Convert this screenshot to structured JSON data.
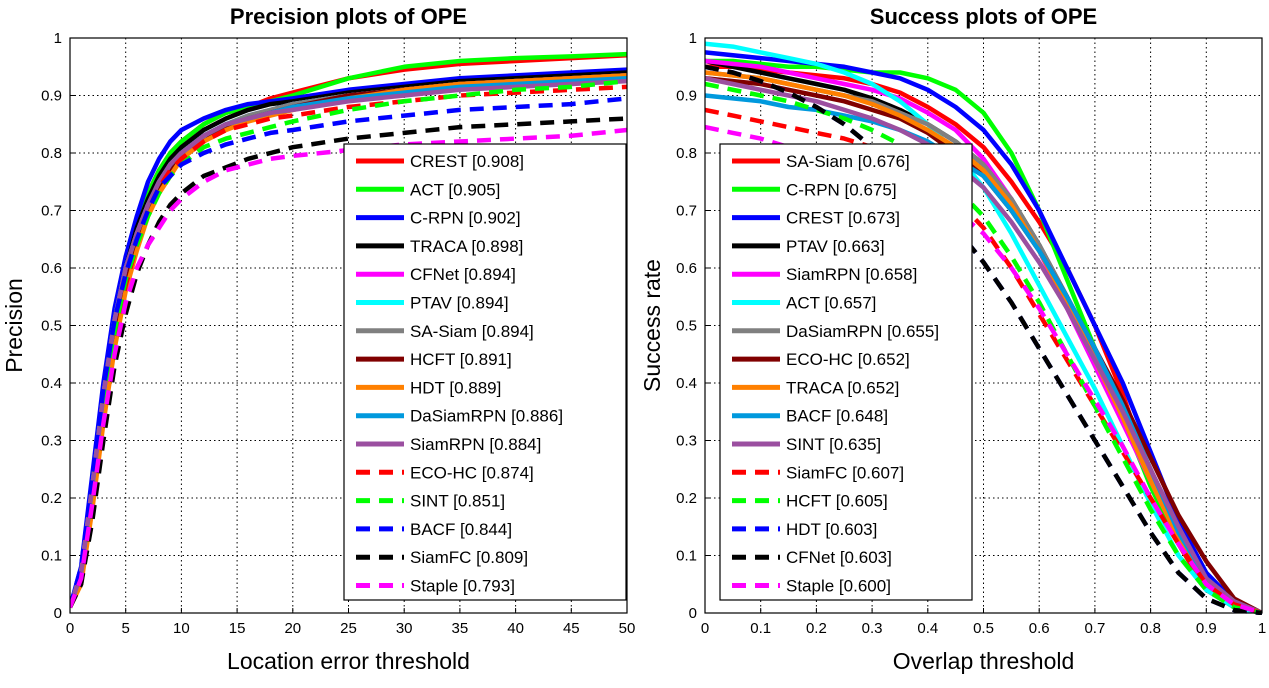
{
  "chart_data": [
    {
      "type": "line",
      "title": "Precision plots of OPE",
      "xlabel": "Location error threshold",
      "ylabel": "Precision",
      "xlim": [
        0,
        50
      ],
      "ylim": [
        0,
        1
      ],
      "grid": true,
      "legend_position": "bottom-right",
      "x_ticks": [
        "0",
        "5",
        "10",
        "15",
        "20",
        "25",
        "30",
        "35",
        "40",
        "45",
        "50"
      ],
      "y_ticks": [
        "0",
        "0.1",
        "0.2",
        "0.3",
        "0.4",
        "0.5",
        "0.6",
        "0.7",
        "0.8",
        "0.9",
        "1"
      ],
      "x": [
        0,
        1,
        2,
        3,
        4,
        5,
        6,
        7,
        8,
        9,
        10,
        12,
        14,
        16,
        18,
        20,
        25,
        30,
        35,
        40,
        45,
        50
      ],
      "series": [
        {
          "name": "CREST [0.908]",
          "color": "#ff0000",
          "dash": false,
          "values": [
            0.01,
            0.07,
            0.22,
            0.38,
            0.51,
            0.6,
            0.67,
            0.73,
            0.77,
            0.8,
            0.82,
            0.85,
            0.87,
            0.88,
            0.895,
            0.905,
            0.93,
            0.945,
            0.955,
            0.96,
            0.965,
            0.97
          ]
        },
        {
          "name": "ACT [0.905]",
          "color": "#00ff00",
          "dash": false,
          "values": [
            0.01,
            0.07,
            0.22,
            0.38,
            0.51,
            0.6,
            0.67,
            0.73,
            0.77,
            0.8,
            0.82,
            0.85,
            0.87,
            0.88,
            0.89,
            0.9,
            0.93,
            0.95,
            0.96,
            0.965,
            0.968,
            0.972
          ]
        },
        {
          "name": "C-RPN [0.902]",
          "color": "#0000ff",
          "dash": false,
          "values": [
            0.01,
            0.08,
            0.24,
            0.4,
            0.53,
            0.62,
            0.69,
            0.75,
            0.79,
            0.82,
            0.84,
            0.86,
            0.875,
            0.885,
            0.89,
            0.895,
            0.91,
            0.92,
            0.93,
            0.935,
            0.94,
            0.945
          ]
        },
        {
          "name": "TRACA [0.898]",
          "color": "#000000",
          "dash": false,
          "values": [
            0.01,
            0.07,
            0.22,
            0.38,
            0.51,
            0.6,
            0.67,
            0.72,
            0.76,
            0.79,
            0.81,
            0.84,
            0.86,
            0.875,
            0.885,
            0.89,
            0.905,
            0.915,
            0.925,
            0.93,
            0.935,
            0.94
          ]
        },
        {
          "name": "CFNet [0.894]",
          "color": "#ff00ff",
          "dash": false,
          "values": [
            0.01,
            0.07,
            0.21,
            0.37,
            0.5,
            0.59,
            0.66,
            0.71,
            0.75,
            0.78,
            0.8,
            0.83,
            0.85,
            0.865,
            0.875,
            0.885,
            0.9,
            0.91,
            0.92,
            0.925,
            0.93,
            0.935
          ]
        },
        {
          "name": "PTAV [0.894]",
          "color": "#00ffff",
          "dash": false,
          "values": [
            0.01,
            0.07,
            0.22,
            0.38,
            0.51,
            0.6,
            0.66,
            0.71,
            0.75,
            0.78,
            0.8,
            0.83,
            0.85,
            0.865,
            0.875,
            0.885,
            0.9,
            0.91,
            0.92,
            0.925,
            0.93,
            0.935
          ]
        },
        {
          "name": "SA-Siam [0.894]",
          "color": "#808080",
          "dash": false,
          "values": [
            0.01,
            0.07,
            0.22,
            0.38,
            0.51,
            0.6,
            0.66,
            0.71,
            0.75,
            0.78,
            0.8,
            0.83,
            0.85,
            0.865,
            0.875,
            0.885,
            0.9,
            0.91,
            0.92,
            0.925,
            0.93,
            0.935
          ]
        },
        {
          "name": "HCFT [0.891]",
          "color": "#800000",
          "dash": false,
          "values": [
            0.01,
            0.06,
            0.2,
            0.36,
            0.49,
            0.58,
            0.65,
            0.7,
            0.74,
            0.77,
            0.79,
            0.82,
            0.845,
            0.86,
            0.87,
            0.88,
            0.9,
            0.91,
            0.92,
            0.925,
            0.93,
            0.935
          ]
        },
        {
          "name": "HDT [0.889]",
          "color": "#ff8000",
          "dash": false,
          "values": [
            0.01,
            0.05,
            0.18,
            0.33,
            0.46,
            0.56,
            0.63,
            0.69,
            0.73,
            0.76,
            0.79,
            0.82,
            0.84,
            0.855,
            0.865,
            0.875,
            0.895,
            0.91,
            0.92,
            0.925,
            0.93,
            0.935
          ]
        },
        {
          "name": "DaSiamRPN [0.886]",
          "color": "#0099dd",
          "dash": false,
          "values": [
            0.01,
            0.07,
            0.22,
            0.38,
            0.51,
            0.6,
            0.66,
            0.71,
            0.75,
            0.78,
            0.8,
            0.83,
            0.85,
            0.86,
            0.87,
            0.88,
            0.895,
            0.905,
            0.915,
            0.92,
            0.925,
            0.93
          ]
        },
        {
          "name": "SiamRPN [0.884]",
          "color": "#9b4fa0",
          "dash": false,
          "values": [
            0.01,
            0.07,
            0.22,
            0.38,
            0.51,
            0.6,
            0.66,
            0.71,
            0.75,
            0.78,
            0.8,
            0.83,
            0.85,
            0.86,
            0.87,
            0.875,
            0.89,
            0.9,
            0.91,
            0.915,
            0.92,
            0.925
          ]
        },
        {
          "name": "ECO-HC [0.874]",
          "color": "#ff0000",
          "dash": true,
          "values": [
            0.01,
            0.06,
            0.2,
            0.35,
            0.48,
            0.57,
            0.64,
            0.7,
            0.74,
            0.77,
            0.79,
            0.82,
            0.84,
            0.85,
            0.86,
            0.865,
            0.88,
            0.89,
            0.9,
            0.905,
            0.91,
            0.915
          ]
        },
        {
          "name": "SINT [0.851]",
          "color": "#00ff00",
          "dash": true,
          "values": [
            0.01,
            0.07,
            0.21,
            0.36,
            0.49,
            0.58,
            0.64,
            0.69,
            0.73,
            0.76,
            0.78,
            0.81,
            0.825,
            0.835,
            0.845,
            0.855,
            0.875,
            0.89,
            0.9,
            0.91,
            0.915,
            0.925
          ]
        },
        {
          "name": "BACF [0.844]",
          "color": "#0000ff",
          "dash": true,
          "values": [
            0.01,
            0.08,
            0.23,
            0.39,
            0.51,
            0.59,
            0.65,
            0.7,
            0.74,
            0.76,
            0.78,
            0.8,
            0.815,
            0.825,
            0.835,
            0.84,
            0.855,
            0.865,
            0.875,
            0.88,
            0.885,
            0.895
          ]
        },
        {
          "name": "SiamFC [0.809]",
          "color": "#000000",
          "dash": true,
          "values": [
            0.01,
            0.05,
            0.16,
            0.3,
            0.43,
            0.52,
            0.59,
            0.64,
            0.68,
            0.71,
            0.73,
            0.76,
            0.775,
            0.79,
            0.8,
            0.81,
            0.825,
            0.835,
            0.845,
            0.85,
            0.855,
            0.86
          ]
        },
        {
          "name": "Staple [0.793]",
          "color": "#ff00ff",
          "dash": true,
          "values": [
            0.01,
            0.06,
            0.19,
            0.33,
            0.45,
            0.54,
            0.6,
            0.64,
            0.67,
            0.7,
            0.72,
            0.75,
            0.77,
            0.78,
            0.79,
            0.795,
            0.805,
            0.815,
            0.82,
            0.825,
            0.83,
            0.84
          ]
        }
      ]
    },
    {
      "type": "line",
      "title": "Success plots of OPE",
      "xlabel": "Overlap threshold",
      "ylabel": "Success rate",
      "xlim": [
        0,
        1
      ],
      "ylim": [
        0,
        1
      ],
      "grid": true,
      "legend_position": "left",
      "x_ticks": [
        "0",
        "0.1",
        "0.2",
        "0.3",
        "0.4",
        "0.5",
        "0.6",
        "0.7",
        "0.8",
        "0.9",
        "1"
      ],
      "y_ticks": [
        "0",
        "0.1",
        "0.2",
        "0.3",
        "0.4",
        "0.5",
        "0.6",
        "0.7",
        "0.8",
        "0.9",
        "1"
      ],
      "x": [
        0,
        0.05,
        0.1,
        0.15,
        0.2,
        0.25,
        0.3,
        0.35,
        0.4,
        0.45,
        0.5,
        0.55,
        0.6,
        0.65,
        0.7,
        0.75,
        0.8,
        0.85,
        0.9,
        0.95,
        1.0
      ],
      "series": [
        {
          "name": "SA-Siam [0.676]",
          "color": "#ff0000",
          "dash": false,
          "values": [
            0.95,
            0.95,
            0.945,
            0.94,
            0.935,
            0.93,
            0.92,
            0.905,
            0.88,
            0.85,
            0.81,
            0.75,
            0.68,
            0.6,
            0.5,
            0.38,
            0.24,
            0.12,
            0.04,
            0.01,
            0.0
          ]
        },
        {
          "name": "C-RPN [0.675]",
          "color": "#00ff00",
          "dash": false,
          "values": [
            0.96,
            0.96,
            0.955,
            0.95,
            0.95,
            0.945,
            0.94,
            0.94,
            0.93,
            0.91,
            0.87,
            0.8,
            0.7,
            0.58,
            0.46,
            0.34,
            0.22,
            0.12,
            0.05,
            0.015,
            0.0
          ]
        },
        {
          "name": "CREST [0.673]",
          "color": "#0000ff",
          "dash": false,
          "values": [
            0.975,
            0.97,
            0.965,
            0.96,
            0.955,
            0.95,
            0.94,
            0.93,
            0.91,
            0.88,
            0.84,
            0.78,
            0.7,
            0.6,
            0.5,
            0.4,
            0.28,
            0.16,
            0.07,
            0.02,
            0.0
          ]
        },
        {
          "name": "PTAV [0.663]",
          "color": "#000000",
          "dash": false,
          "values": [
            0.96,
            0.95,
            0.94,
            0.93,
            0.92,
            0.91,
            0.895,
            0.875,
            0.85,
            0.82,
            0.78,
            0.72,
            0.64,
            0.55,
            0.45,
            0.35,
            0.24,
            0.13,
            0.05,
            0.015,
            0.0
          ]
        },
        {
          "name": "SiamRPN [0.658]",
          "color": "#ff00ff",
          "dash": false,
          "values": [
            0.96,
            0.955,
            0.95,
            0.94,
            0.93,
            0.92,
            0.91,
            0.895,
            0.87,
            0.84,
            0.79,
            0.72,
            0.63,
            0.53,
            0.43,
            0.33,
            0.23,
            0.13,
            0.05,
            0.015,
            0.0
          ]
        },
        {
          "name": "ACT [0.657]",
          "color": "#00ffff",
          "dash": false,
          "values": [
            0.99,
            0.985,
            0.975,
            0.965,
            0.955,
            0.94,
            0.92,
            0.89,
            0.85,
            0.8,
            0.74,
            0.66,
            0.57,
            0.48,
            0.39,
            0.29,
            0.19,
            0.1,
            0.04,
            0.01,
            0.0
          ]
        },
        {
          "name": "DaSiamRPN [0.655]",
          "color": "#808080",
          "dash": false,
          "values": [
            0.94,
            0.935,
            0.93,
            0.92,
            0.91,
            0.9,
            0.89,
            0.87,
            0.85,
            0.82,
            0.78,
            0.72,
            0.64,
            0.55,
            0.45,
            0.35,
            0.24,
            0.13,
            0.05,
            0.015,
            0.0
          ]
        },
        {
          "name": "ECO-HC [0.652]",
          "color": "#800000",
          "dash": false,
          "values": [
            0.93,
            0.925,
            0.92,
            0.91,
            0.9,
            0.89,
            0.875,
            0.86,
            0.835,
            0.8,
            0.76,
            0.7,
            0.63,
            0.55,
            0.46,
            0.37,
            0.27,
            0.17,
            0.09,
            0.025,
            0.0
          ]
        },
        {
          "name": "TRACA [0.652]",
          "color": "#ff8000",
          "dash": false,
          "values": [
            0.94,
            0.935,
            0.93,
            0.92,
            0.91,
            0.9,
            0.885,
            0.865,
            0.84,
            0.81,
            0.77,
            0.71,
            0.63,
            0.54,
            0.44,
            0.34,
            0.23,
            0.13,
            0.05,
            0.015,
            0.0
          ]
        },
        {
          "name": "BACF [0.648]",
          "color": "#0099dd",
          "dash": false,
          "values": [
            0.9,
            0.895,
            0.89,
            0.88,
            0.875,
            0.865,
            0.855,
            0.84,
            0.82,
            0.79,
            0.76,
            0.7,
            0.63,
            0.55,
            0.46,
            0.36,
            0.25,
            0.14,
            0.06,
            0.02,
            0.0
          ]
        },
        {
          "name": "SINT [0.635]",
          "color": "#9b4fa0",
          "dash": false,
          "values": [
            0.93,
            0.92,
            0.91,
            0.9,
            0.89,
            0.875,
            0.86,
            0.84,
            0.815,
            0.78,
            0.74,
            0.68,
            0.61,
            0.53,
            0.44,
            0.35,
            0.25,
            0.15,
            0.06,
            0.02,
            0.0
          ]
        },
        {
          "name": "SiamFC [0.607]",
          "color": "#ff0000",
          "dash": true,
          "values": [
            0.875,
            0.865,
            0.855,
            0.845,
            0.835,
            0.825,
            0.81,
            0.79,
            0.76,
            0.72,
            0.67,
            0.6,
            0.52,
            0.44,
            0.36,
            0.28,
            0.2,
            0.12,
            0.05,
            0.015,
            0.0
          ]
        },
        {
          "name": "HCFT [0.605]",
          "color": "#00ff00",
          "dash": true,
          "values": [
            0.92,
            0.91,
            0.9,
            0.89,
            0.875,
            0.86,
            0.84,
            0.815,
            0.78,
            0.74,
            0.69,
            0.62,
            0.54,
            0.45,
            0.36,
            0.27,
            0.18,
            0.1,
            0.04,
            0.01,
            0.0
          ]
        },
        {
          "name": "HDT [0.603]",
          "color": "#0000ff",
          "dash": true,
          "values": [
            0.95,
            0.94,
            0.925,
            0.905,
            0.88,
            0.85,
            0.81,
            0.77,
            0.72,
            0.67,
            0.61,
            0.54,
            0.46,
            0.38,
            0.3,
            0.22,
            0.14,
            0.07,
            0.025,
            0.005,
            0.0
          ]
        },
        {
          "name": "CFNet [0.603]",
          "color": "#000000",
          "dash": true,
          "values": [
            0.95,
            0.94,
            0.925,
            0.905,
            0.88,
            0.85,
            0.81,
            0.77,
            0.72,
            0.67,
            0.61,
            0.54,
            0.46,
            0.38,
            0.3,
            0.22,
            0.14,
            0.07,
            0.025,
            0.005,
            0.0
          ]
        },
        {
          "name": "Staple [0.600]",
          "color": "#ff00ff",
          "dash": true,
          "values": [
            0.845,
            0.835,
            0.825,
            0.81,
            0.8,
            0.785,
            0.77,
            0.75,
            0.73,
            0.7,
            0.66,
            0.6,
            0.53,
            0.45,
            0.37,
            0.29,
            0.2,
            0.12,
            0.05,
            0.015,
            0.0
          ]
        }
      ]
    }
  ]
}
